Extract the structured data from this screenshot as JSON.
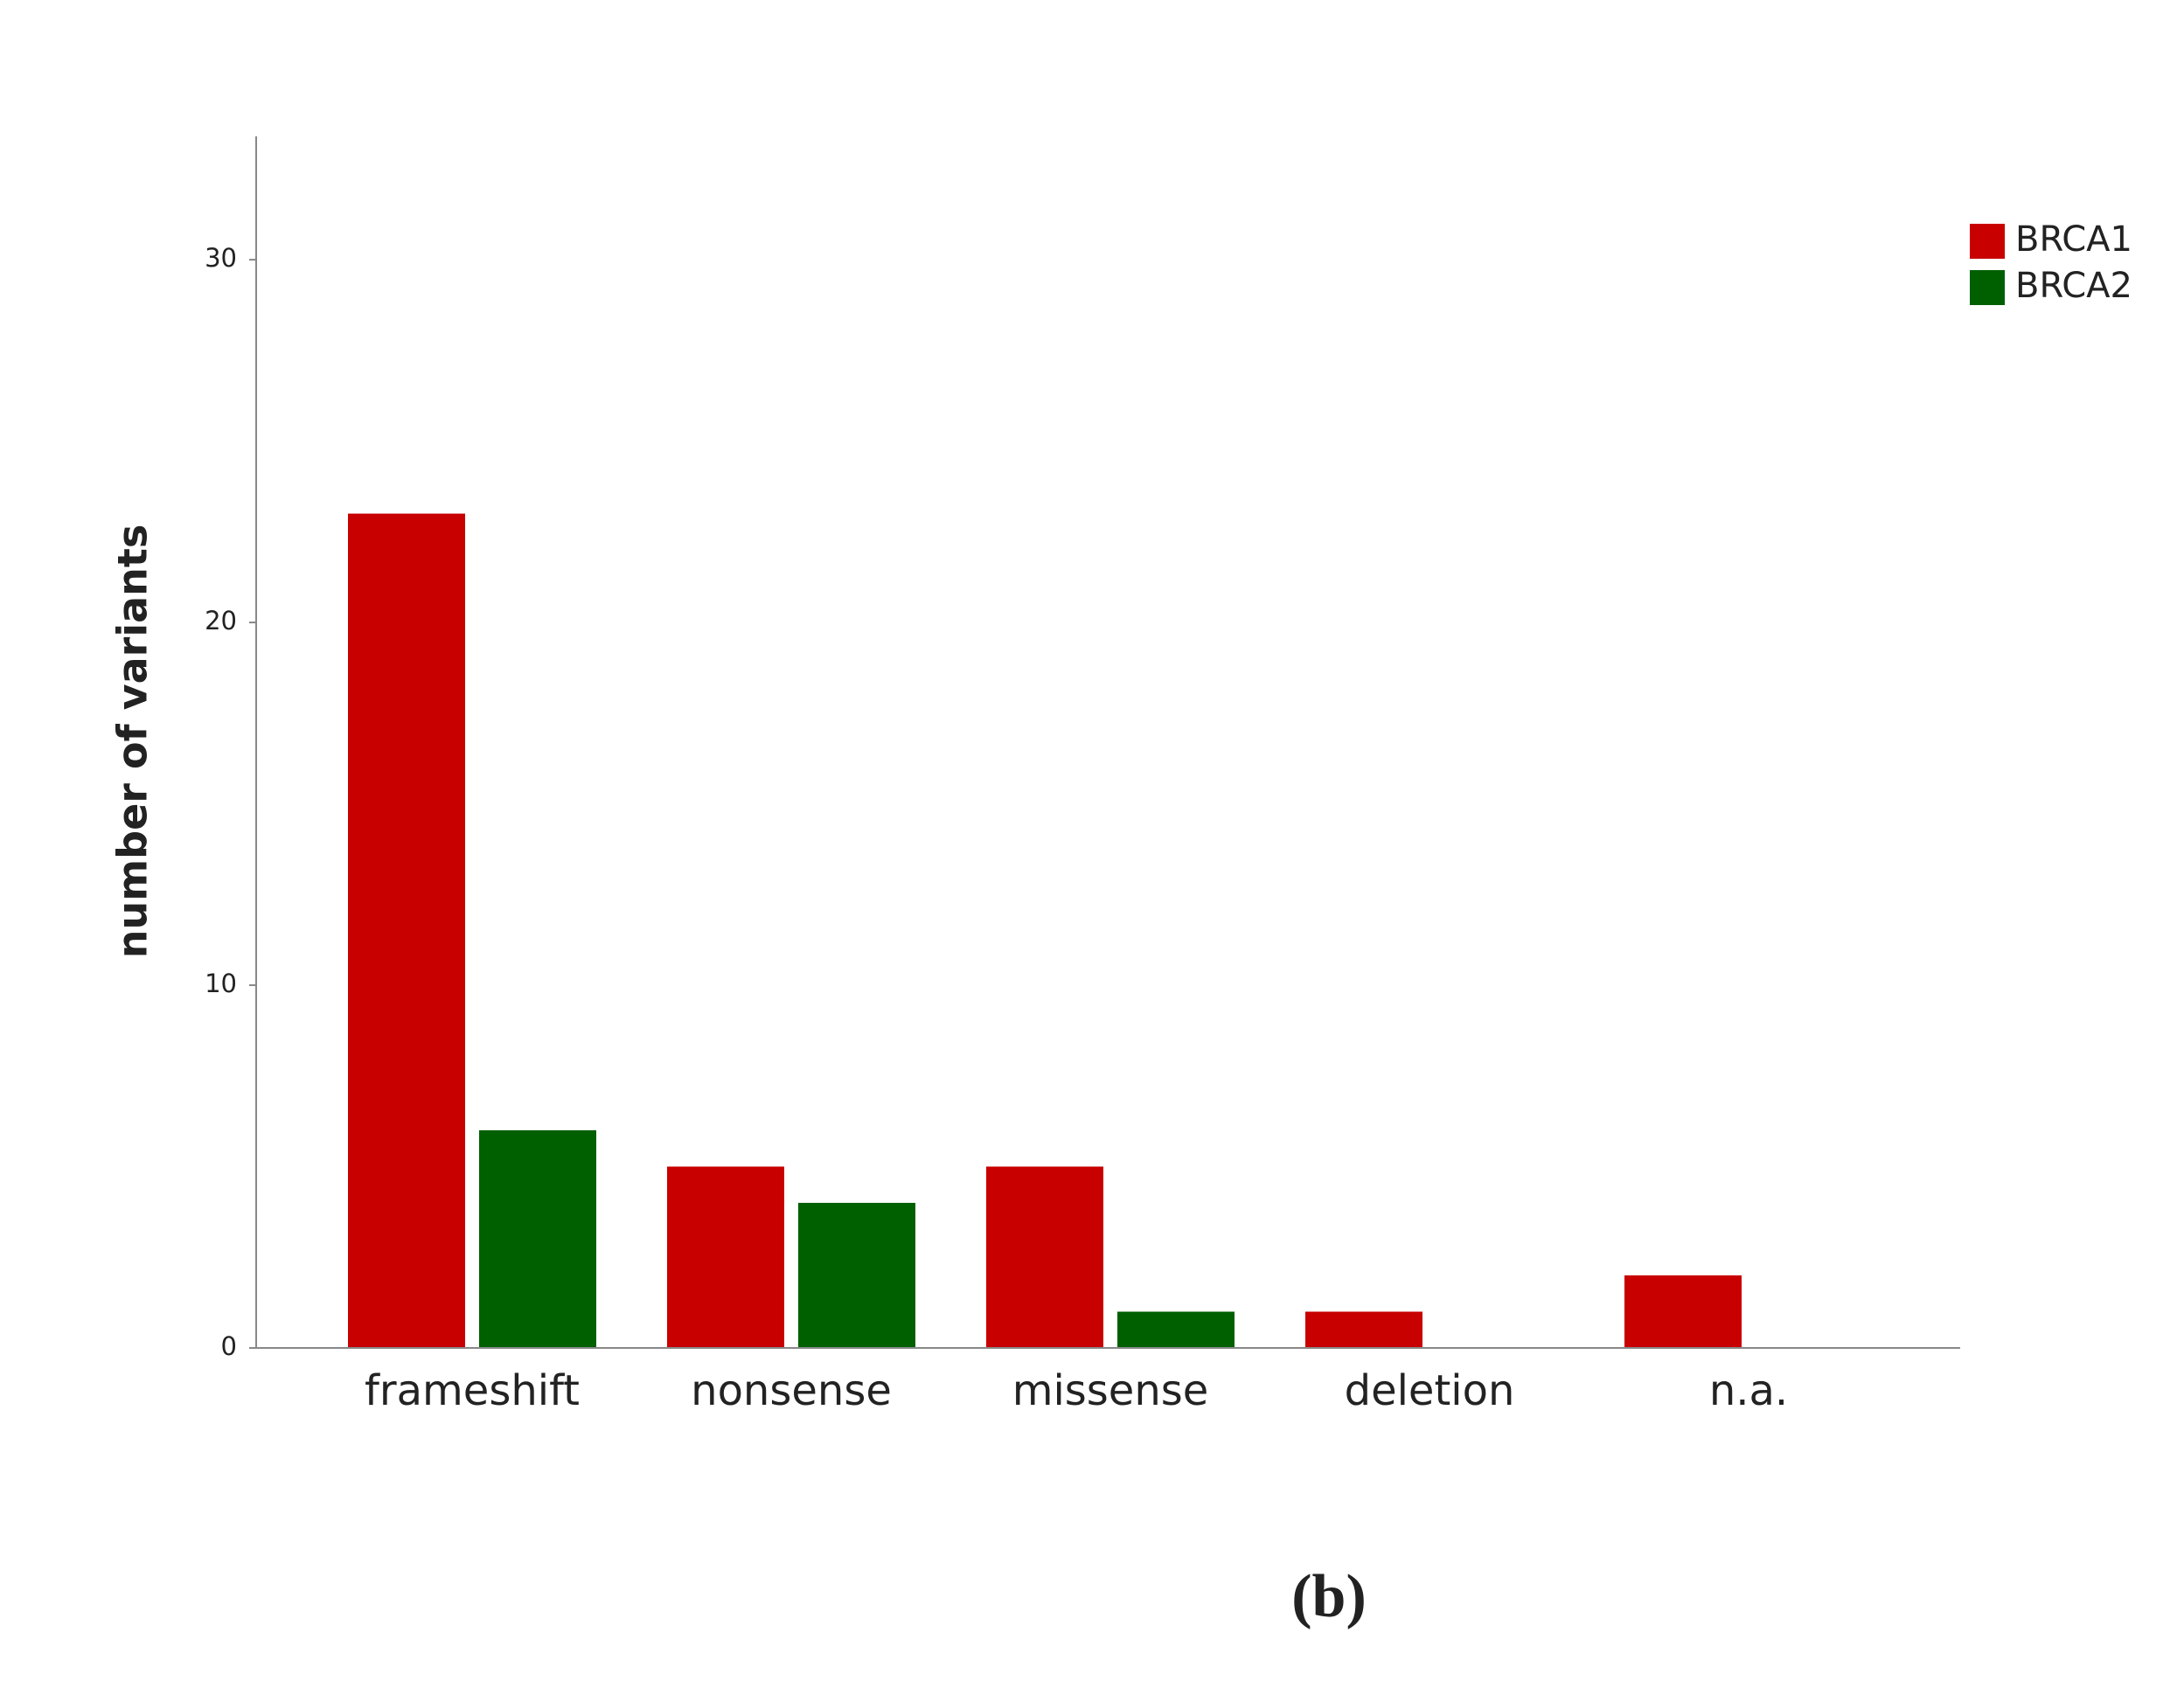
{
  "chart_data": {
    "type": "bar",
    "y_label": "number of variants",
    "caption": "(b)",
    "categories": [
      "frameshift",
      "nonsense",
      "missense",
      "deletion",
      "n.a."
    ],
    "series": [
      {
        "name": "BRCA1",
        "color": "#c80000",
        "values": [
          23,
          5,
          5,
          1,
          2
        ]
      },
      {
        "name": "BRCA2",
        "color": "#006000",
        "values": [
          6,
          4,
          1,
          0,
          0
        ]
      }
    ],
    "ylim": [
      0,
      33.4
    ],
    "yticks": [
      0,
      10,
      20,
      30
    ],
    "legend": "top-right"
  }
}
